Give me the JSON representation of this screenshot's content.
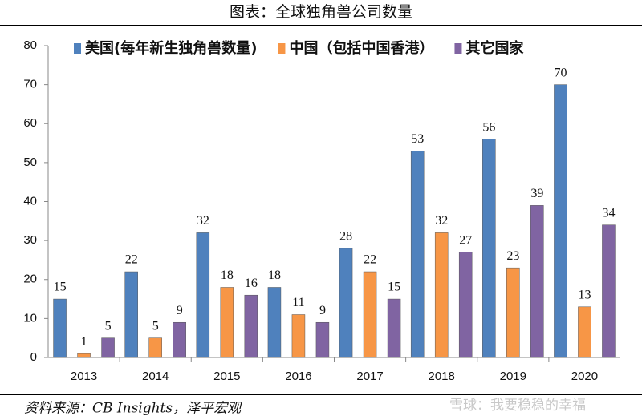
{
  "chart_data": {
    "type": "bar",
    "title": "图表：全球独角兽公司数量",
    "source": "资料来源：CB Insights，泽平宏观",
    "watermark": "雪球：我要稳稳的幸福",
    "categories": [
      "2013",
      "2014",
      "2015",
      "2016",
      "2017",
      "2018",
      "2019",
      "2020"
    ],
    "series": [
      {
        "name": "美国(每年新生独角兽数量)",
        "color": "#4f81bd",
        "values": [
          15,
          22,
          32,
          18,
          28,
          53,
          56,
          70
        ]
      },
      {
        "name": "中国（包括中国香港）",
        "color": "#f79646",
        "values": [
          1,
          5,
          18,
          11,
          22,
          32,
          23,
          13
        ]
      },
      {
        "name": "其它国家",
        "color": "#8064a2",
        "values": [
          5,
          9,
          16,
          9,
          15,
          27,
          39,
          34
        ]
      }
    ],
    "ylim": [
      0,
      80
    ],
    "yticks": [
      0,
      10,
      20,
      30,
      40,
      50,
      60,
      70,
      80
    ],
    "grid": false,
    "legend": "top"
  }
}
